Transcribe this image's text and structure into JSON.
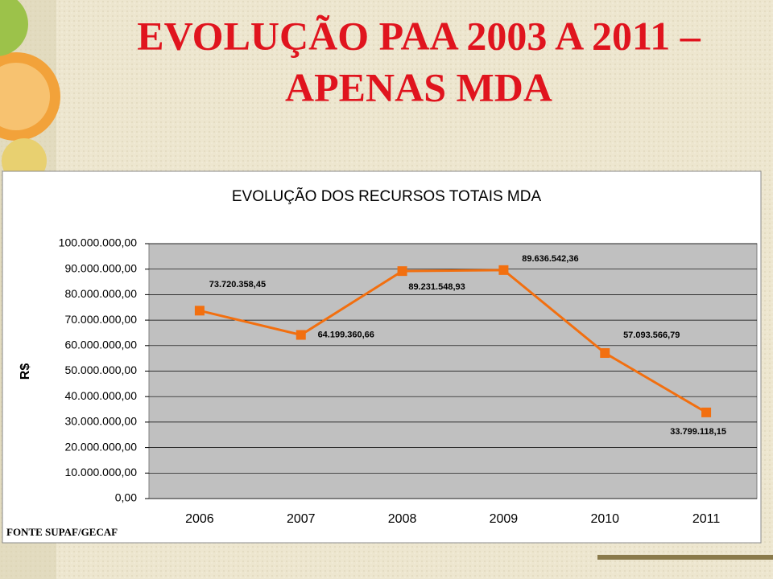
{
  "slide_title": [
    "EVOLUÇÃO PAA 2003 A 2011 –",
    "APENAS MDA"
  ],
  "chart_data": {
    "type": "line",
    "title": "EVOLUÇÃO DOS RECURSOS TOTAIS MDA",
    "y_label": "R$",
    "source": "FONTE SUPAF/GECAF",
    "categories": [
      "2006",
      "2007",
      "2008",
      "2009",
      "2010",
      "2011"
    ],
    "values": [
      73720358.45,
      64199360.66,
      89231548.93,
      89636542.36,
      57093566.79,
      33799118.15
    ],
    "value_labels": [
      "73.720.358,45",
      "64.199.360,66",
      "89.231.548,93",
      "89.636.542,36",
      "57.093.566,79",
      "33.799.118,15"
    ],
    "color": "#f26f0f",
    "ylim": [
      0,
      100000000
    ],
    "yticks": [
      {
        "value": 0,
        "label": "0,00"
      },
      {
        "value": 10000000,
        "label": "10.000.000,00"
      },
      {
        "value": 20000000,
        "label": "20.000.000,00"
      },
      {
        "value": 30000000,
        "label": "30.000.000,00"
      },
      {
        "value": 40000000,
        "label": "40.000.000,00"
      },
      {
        "value": 50000000,
        "label": "50.000.000,00"
      },
      {
        "value": 60000000,
        "label": "60.000.000,00"
      },
      {
        "value": 70000000,
        "label": "70.000.000,00"
      },
      {
        "value": 80000000,
        "label": "80.000.000,00"
      },
      {
        "value": 90000000,
        "label": "90.000.000,00"
      },
      {
        "value": 100000000,
        "label": "100.000.000,00"
      }
    ],
    "grid": true
  }
}
